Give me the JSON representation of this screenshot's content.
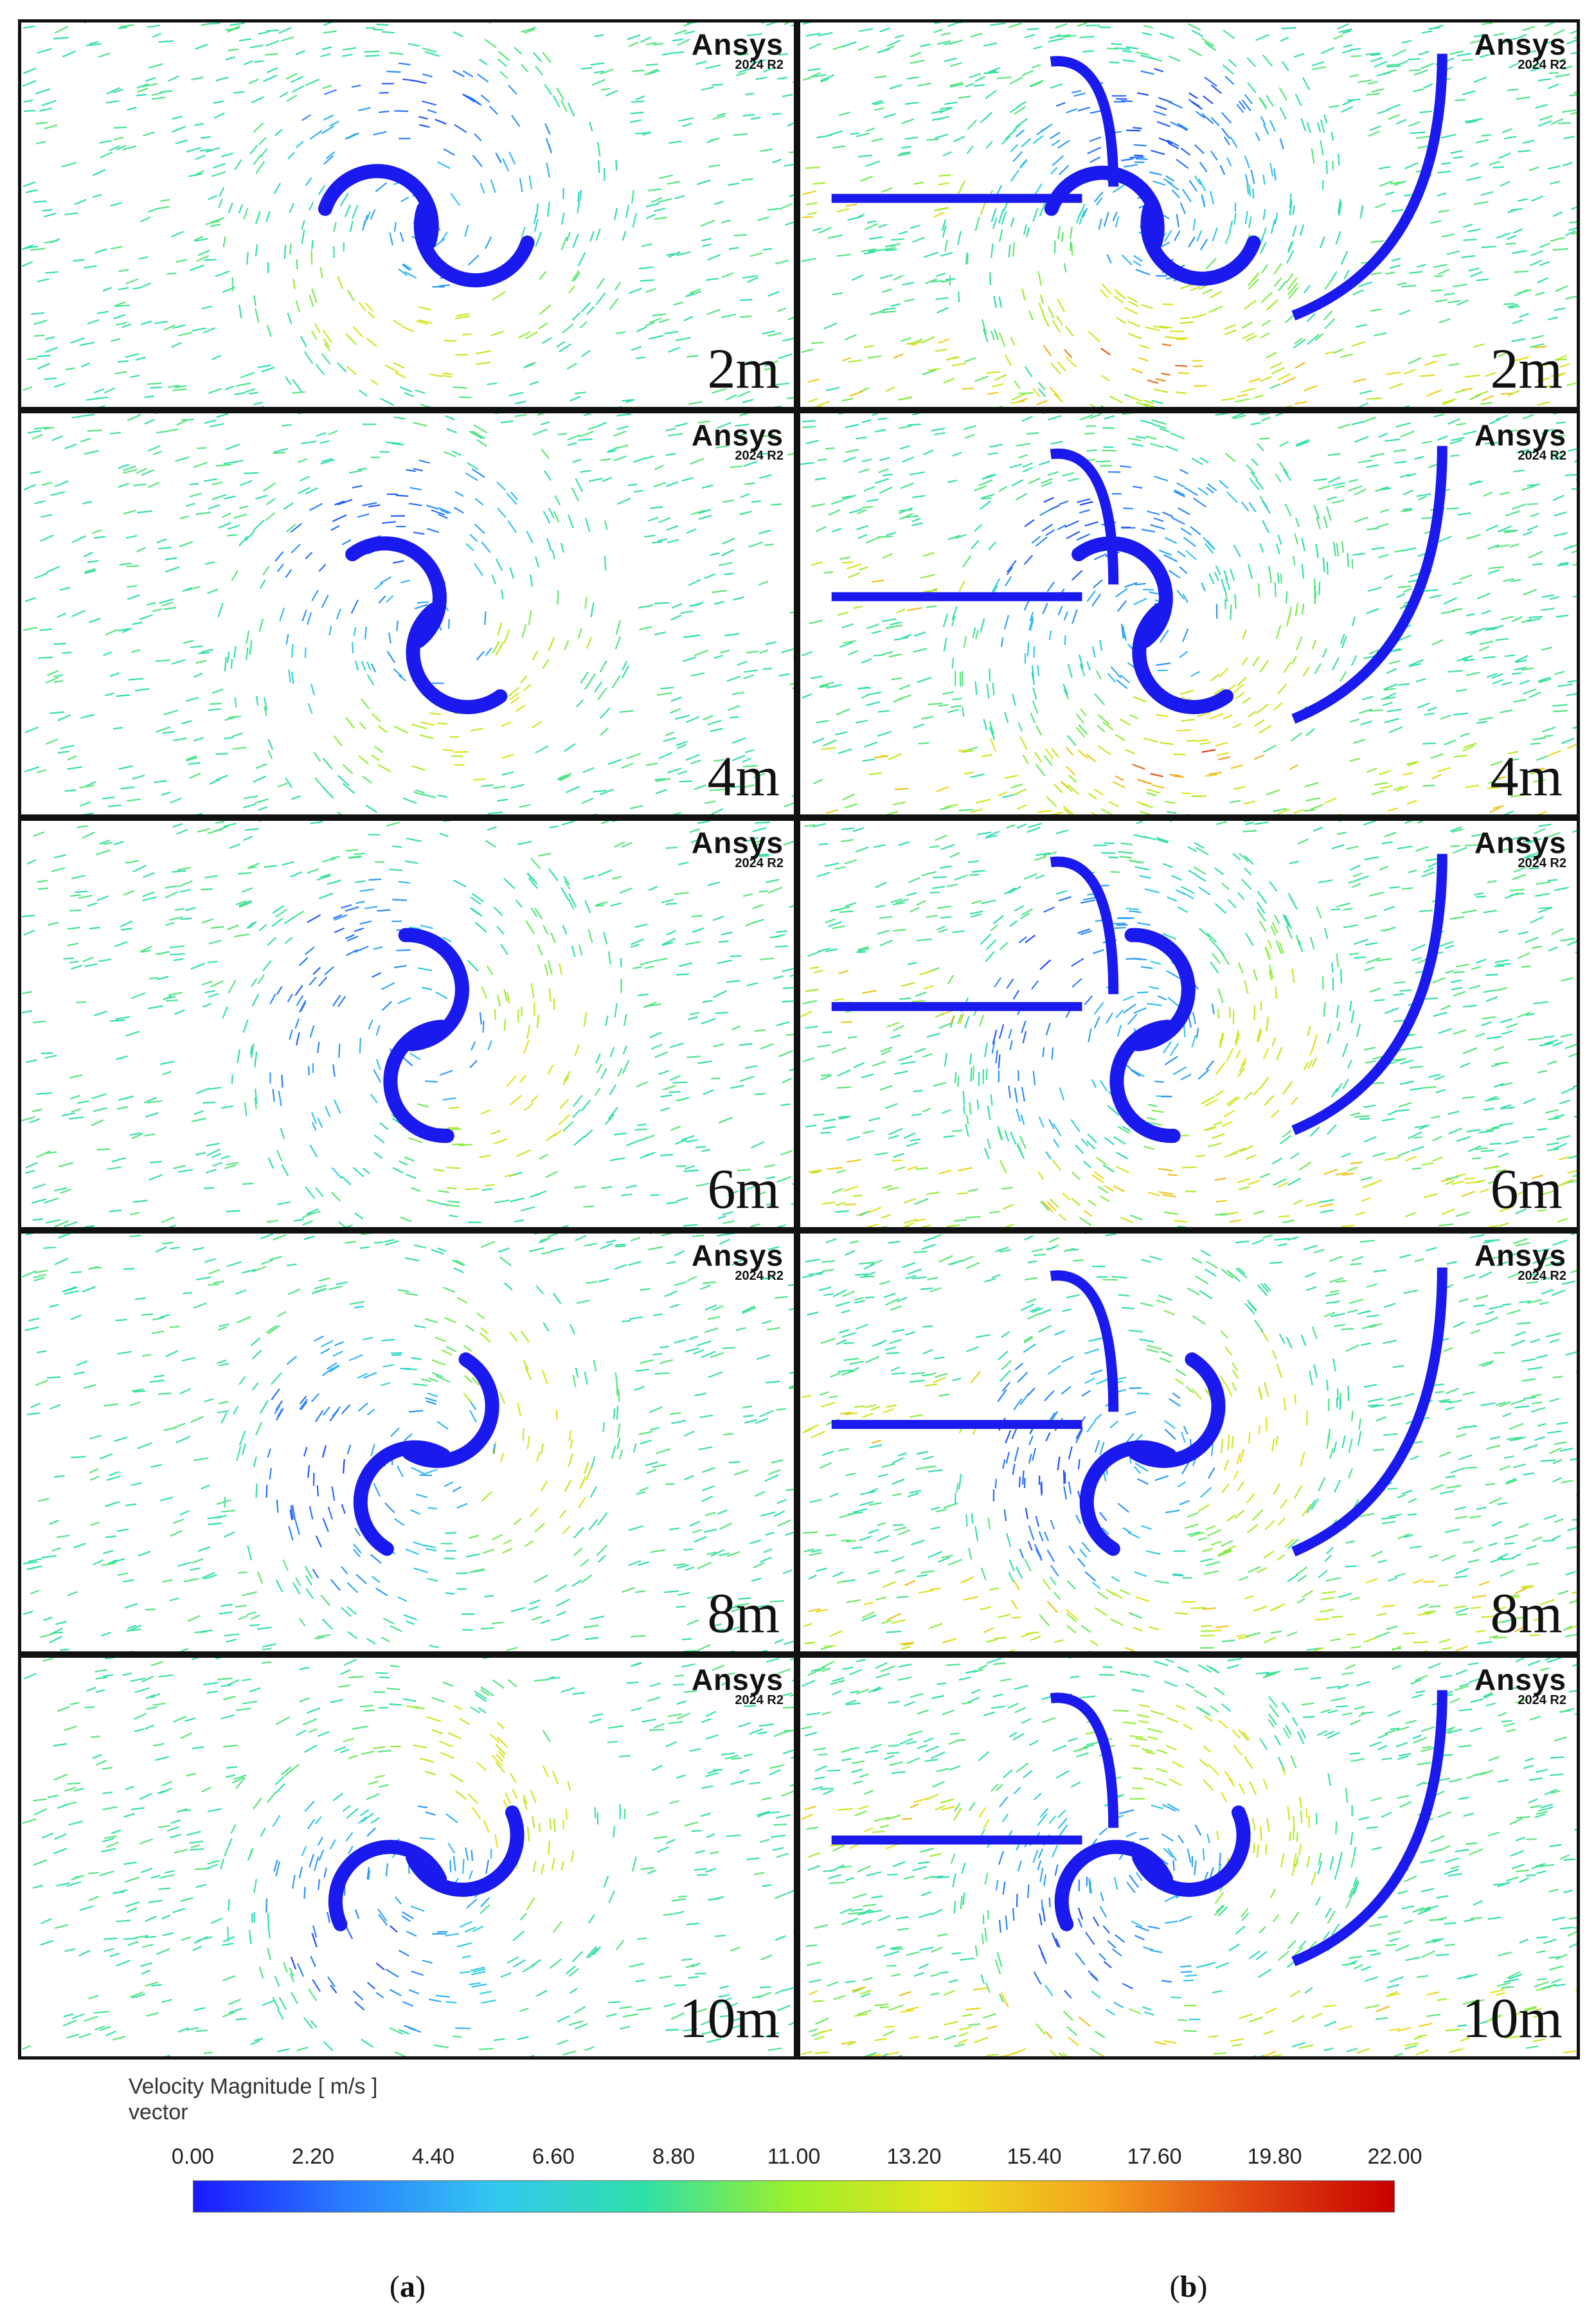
{
  "logo": {
    "brand": "Ansys",
    "version": "2024 R2"
  },
  "panels": [
    {
      "column": "a",
      "time_label": "2m"
    },
    {
      "column": "b",
      "time_label": "2m"
    },
    {
      "column": "a",
      "time_label": "4m"
    },
    {
      "column": "b",
      "time_label": "4m"
    },
    {
      "column": "a",
      "time_label": "6m"
    },
    {
      "column": "b",
      "time_label": "6m"
    },
    {
      "column": "a",
      "time_label": "8m"
    },
    {
      "column": "b",
      "time_label": "8m"
    },
    {
      "column": "a",
      "time_label": "10m"
    },
    {
      "column": "b",
      "time_label": "10m"
    }
  ],
  "legend": {
    "title": "Velocity Magnitude [ m/s ]",
    "subtitle": "vector",
    "ticks": [
      "0.00",
      "2.20",
      "4.40",
      "6.60",
      "8.80",
      "11.00",
      "13.20",
      "15.40",
      "17.60",
      "19.80",
      "22.00"
    ],
    "colormap": [
      "#1a1aff",
      "#2a7bff",
      "#33c7f0",
      "#2fe0a8",
      "#9cf02c",
      "#e8e21c",
      "#f5a41e",
      "#e24a12",
      "#c80000"
    ]
  },
  "subfigure_labels": {
    "a": "a",
    "b": "b"
  }
}
